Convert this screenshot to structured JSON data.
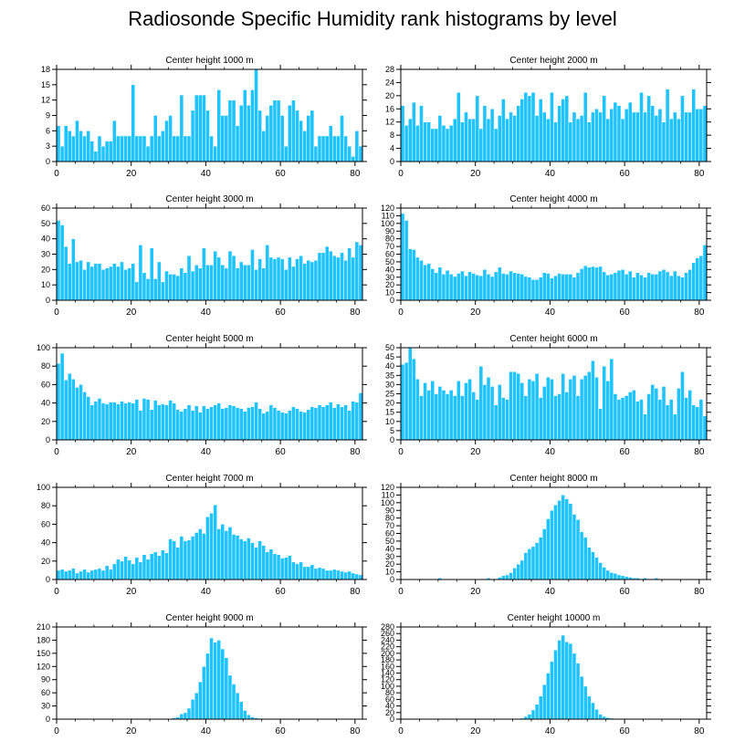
{
  "figure": {
    "title": "Radiosonde Specific Humidity rank histograms by level",
    "bar_color": "#1ec3ff",
    "bar_edge_color": "#ffffff",
    "axis_color": "#000000"
  },
  "chart_data": [
    {
      "type": "bar",
      "title": "Center height 1000 m",
      "xlim": [
        0,
        82
      ],
      "xticks": [
        0,
        20,
        40,
        60,
        80
      ],
      "ylim": [
        0,
        18
      ],
      "yticks": [
        0,
        3,
        6,
        9,
        12,
        15,
        18
      ],
      "values": [
        7,
        3,
        7,
        6,
        5,
        8,
        6,
        5,
        6,
        4,
        2,
        5,
        3,
        4,
        4,
        8,
        5,
        5,
        5,
        5,
        15,
        5,
        5,
        5,
        3,
        5,
        9,
        5,
        6,
        8,
        9,
        5,
        5,
        13,
        5,
        5,
        10,
        13,
        13,
        13,
        10,
        5,
        3,
        14,
        9,
        9,
        12,
        12,
        7,
        11,
        14,
        11,
        14,
        18,
        10,
        6,
        9,
        11,
        12,
        12,
        9,
        3,
        11,
        12,
        10,
        8,
        6,
        9,
        10,
        3,
        5,
        5,
        5,
        7,
        5,
        5,
        9,
        5,
        3,
        1,
        6,
        3
      ]
    },
    {
      "type": "bar",
      "title": "Center height 2000 m",
      "xlim": [
        0,
        82
      ],
      "xticks": [
        0,
        20,
        40,
        60,
        80
      ],
      "ylim": [
        0,
        28
      ],
      "yticks": [
        0,
        4,
        8,
        12,
        16,
        20,
        24,
        28
      ],
      "values": [
        17,
        11,
        13,
        18,
        11,
        17,
        12,
        12,
        10,
        10,
        14,
        11,
        10,
        11,
        13,
        21,
        12,
        15,
        13,
        13,
        20,
        10,
        17,
        13,
        16,
        10,
        14,
        19,
        13,
        15,
        14,
        17,
        19,
        21,
        20,
        21,
        14,
        19,
        15,
        13,
        21,
        12,
        17,
        19,
        20,
        12,
        15,
        13,
        14,
        21,
        12,
        15,
        16,
        15,
        20,
        13,
        16,
        18,
        17,
        13,
        16,
        18,
        15,
        15,
        21,
        15,
        20,
        17,
        14,
        16,
        12,
        22,
        13,
        15,
        13,
        20,
        15,
        15,
        22,
        16,
        16,
        17
      ]
    },
    {
      "type": "bar",
      "title": "Center height 3000 m",
      "xlim": [
        0,
        82
      ],
      "xticks": [
        0,
        20,
        40,
        60,
        80
      ],
      "ylim": [
        0,
        60
      ],
      "yticks": [
        0,
        10,
        20,
        30,
        40,
        50,
        60
      ],
      "values": [
        52,
        49,
        35,
        24,
        40,
        25,
        26,
        20,
        25,
        22,
        24,
        24,
        20,
        21,
        22,
        24,
        22,
        25,
        20,
        21,
        24,
        12,
        36,
        18,
        14,
        34,
        14,
        25,
        12,
        19,
        17,
        17,
        16,
        21,
        18,
        29,
        19,
        23,
        21,
        34,
        23,
        23,
        32,
        28,
        23,
        21,
        32,
        29,
        21,
        25,
        23,
        23,
        33,
        20,
        27,
        21,
        36,
        28,
        27,
        28,
        27,
        20,
        28,
        22,
        27,
        29,
        24,
        26,
        25,
        26,
        31,
        31,
        35,
        32,
        29,
        28,
        31,
        26,
        34,
        28,
        38,
        36
      ]
    },
    {
      "type": "bar",
      "title": "Center height 4000 m",
      "xlim": [
        0,
        82
      ],
      "xticks": [
        0,
        20,
        40,
        60,
        80
      ],
      "ylim": [
        0,
        120
      ],
      "yticks": [
        0,
        10,
        20,
        30,
        40,
        50,
        60,
        70,
        80,
        90,
        100,
        110,
        120
      ],
      "values": [
        113,
        104,
        67,
        66,
        56,
        52,
        46,
        48,
        41,
        36,
        43,
        34,
        39,
        34,
        31,
        35,
        38,
        32,
        37,
        35,
        33,
        32,
        40,
        34,
        31,
        37,
        43,
        35,
        34,
        38,
        36,
        35,
        34,
        31,
        30,
        27,
        27,
        30,
        36,
        35,
        29,
        32,
        35,
        34,
        34,
        34,
        30,
        36,
        41,
        45,
        43,
        44,
        43,
        44,
        37,
        33,
        34,
        36,
        39,
        40,
        34,
        38,
        30,
        36,
        33,
        30,
        36,
        34,
        34,
        38,
        40,
        37,
        32,
        38,
        32,
        30,
        36,
        40,
        49,
        55,
        58,
        72
      ]
    },
    {
      "type": "bar",
      "title": "Center height 5000 m",
      "xlim": [
        0,
        82
      ],
      "xticks": [
        0,
        20,
        40,
        60,
        80
      ],
      "ylim": [
        0,
        100
      ],
      "yticks": [
        0,
        20,
        40,
        60,
        80,
        100
      ],
      "values": [
        83,
        94,
        65,
        72,
        66,
        57,
        60,
        52,
        47,
        38,
        42,
        45,
        40,
        39,
        41,
        41,
        39,
        42,
        40,
        41,
        40,
        44,
        32,
        45,
        44,
        33,
        43,
        38,
        39,
        38,
        43,
        40,
        33,
        31,
        34,
        38,
        32,
        37,
        30,
        37,
        34,
        36,
        38,
        40,
        34,
        35,
        38,
        37,
        35,
        34,
        31,
        35,
        36,
        41,
        34,
        29,
        31,
        38,
        35,
        32,
        30,
        29,
        32,
        36,
        34,
        31,
        30,
        33,
        36,
        35,
        38,
        36,
        38,
        41,
        35,
        39,
        36,
        38,
        32,
        42,
        41,
        51
      ]
    },
    {
      "type": "bar",
      "title": "Center height 6000 m",
      "xlim": [
        0,
        82
      ],
      "xticks": [
        0,
        20,
        40,
        60,
        80
      ],
      "ylim": [
        0,
        50
      ],
      "yticks": [
        0,
        5,
        10,
        15,
        20,
        25,
        30,
        35,
        40,
        45,
        50
      ],
      "values": [
        41,
        42,
        50,
        44,
        33,
        24,
        31,
        27,
        32,
        25,
        29,
        27,
        25,
        27,
        24,
        32,
        24,
        31,
        33,
        26,
        22,
        40,
        30,
        34,
        29,
        19,
        30,
        23,
        22,
        37,
        37,
        36,
        31,
        24,
        33,
        32,
        36,
        23,
        29,
        34,
        33,
        24,
        25,
        36,
        26,
        33,
        35,
        24,
        33,
        35,
        37,
        43,
        34,
        17,
        40,
        32,
        44,
        25,
        22,
        23,
        24,
        26,
        27,
        21,
        22,
        14,
        25,
        30,
        28,
        22,
        29,
        19,
        22,
        14,
        28,
        37,
        23,
        27,
        19,
        18,
        22,
        13
      ]
    },
    {
      "type": "bar",
      "title": "Center height 7000 m",
      "xlim": [
        0,
        82
      ],
      "xticks": [
        0,
        20,
        40,
        60,
        80
      ],
      "ylim": [
        0,
        100
      ],
      "yticks": [
        0,
        20,
        40,
        60,
        80,
        100
      ],
      "values": [
        10,
        11,
        9,
        10,
        12,
        7,
        9,
        11,
        8,
        10,
        11,
        12,
        10,
        15,
        11,
        17,
        22,
        20,
        25,
        21,
        17,
        24,
        19,
        27,
        22,
        28,
        30,
        26,
        32,
        29,
        44,
        42,
        35,
        47,
        42,
        43,
        47,
        51,
        55,
        50,
        68,
        72,
        81,
        55,
        60,
        53,
        57,
        49,
        48,
        44,
        42,
        45,
        40,
        35,
        42,
        37,
        30,
        33,
        28,
        27,
        23,
        24,
        26,
        19,
        17,
        19,
        14,
        14,
        16,
        12,
        13,
        12,
        10,
        10,
        11,
        10,
        9,
        8,
        9,
        7,
        6,
        5
      ]
    },
    {
      "type": "bar",
      "title": "Center height 8000 m",
      "xlim": [
        0,
        82
      ],
      "xticks": [
        0,
        20,
        40,
        60,
        80
      ],
      "ylim": [
        0,
        120
      ],
      "yticks": [
        0,
        10,
        20,
        30,
        40,
        50,
        60,
        70,
        80,
        90,
        100,
        110,
        120
      ],
      "values": [
        1,
        0,
        0,
        0,
        0,
        1,
        0,
        0,
        0,
        0,
        2,
        0,
        0,
        0,
        0,
        0,
        0,
        0,
        0,
        0,
        0,
        1,
        0,
        2,
        0,
        1,
        3,
        5,
        6,
        9,
        15,
        20,
        25,
        35,
        40,
        43,
        48,
        55,
        66,
        79,
        90,
        97,
        103,
        110,
        105,
        99,
        85,
        78,
        62,
        55,
        42,
        36,
        29,
        22,
        16,
        12,
        9,
        8,
        6,
        5,
        4,
        3,
        2,
        2,
        1,
        2,
        1,
        1,
        2,
        1,
        0,
        0,
        0,
        1,
        0,
        0,
        0,
        0,
        0,
        0,
        0,
        0
      ]
    },
    {
      "type": "bar",
      "title": "Center height 9000 m",
      "xlim": [
        0,
        82
      ],
      "xticks": [
        0,
        20,
        40,
        60,
        80
      ],
      "ylim": [
        0,
        210
      ],
      "yticks": [
        0,
        30,
        60,
        90,
        120,
        150,
        180,
        210
      ],
      "values": [
        0,
        0,
        0,
        0,
        0,
        0,
        0,
        0,
        0,
        0,
        0,
        0,
        0,
        0,
        0,
        0,
        0,
        0,
        0,
        0,
        0,
        0,
        0,
        0,
        0,
        0,
        0,
        0,
        0,
        0,
        0,
        3,
        5,
        12,
        15,
        25,
        45,
        60,
        85,
        120,
        150,
        185,
        175,
        180,
        160,
        140,
        100,
        80,
        60,
        40,
        20,
        10,
        5,
        3,
        2,
        1,
        0,
        0,
        0,
        0,
        0,
        0,
        0,
        0,
        0,
        0,
        0,
        0,
        0,
        0,
        0,
        0,
        0,
        0,
        0,
        0,
        0,
        0,
        0,
        0,
        0,
        0
      ]
    },
    {
      "type": "bar",
      "title": "Center height 10000 m",
      "xlim": [
        0,
        82
      ],
      "xticks": [
        0,
        20,
        40,
        60,
        80
      ],
      "ylim": [
        0,
        280
      ],
      "yticks": [
        0,
        20,
        40,
        60,
        80,
        100,
        120,
        140,
        160,
        180,
        200,
        220,
        240,
        260,
        280
      ],
      "values": [
        0,
        0,
        0,
        0,
        0,
        0,
        0,
        0,
        0,
        0,
        0,
        0,
        0,
        0,
        0,
        0,
        0,
        0,
        0,
        0,
        0,
        0,
        0,
        0,
        0,
        0,
        0,
        0,
        0,
        0,
        0,
        0,
        3,
        8,
        15,
        28,
        45,
        70,
        105,
        140,
        175,
        210,
        240,
        255,
        235,
        230,
        200,
        170,
        130,
        100,
        70,
        50,
        30,
        15,
        8,
        5,
        3,
        2,
        1,
        0,
        0,
        0,
        0,
        0,
        0,
        0,
        0,
        0,
        0,
        0,
        0,
        0,
        0,
        0,
        0,
        0,
        0,
        0,
        0,
        0,
        0,
        0
      ]
    }
  ]
}
